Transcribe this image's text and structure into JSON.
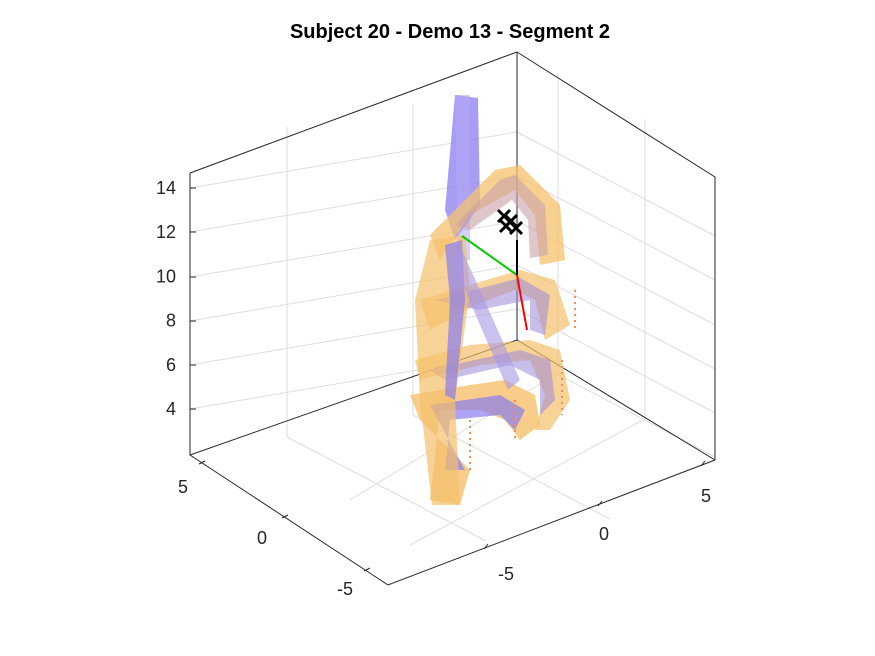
{
  "chart_data": {
    "type": "3d-surface",
    "title": "Subject 20 - Demo 13 - Segment 2",
    "xlabel": "",
    "ylabel": "",
    "zlabel": "",
    "x_ticks": [
      "-5",
      "0",
      "5"
    ],
    "y_ticks": [
      "-5",
      "0",
      "5"
    ],
    "z_ticks": [
      "4",
      "6",
      "8",
      "10",
      "12",
      "14"
    ],
    "grid": true,
    "view": "3d-isometric",
    "shapes": [
      {
        "name": "",
        "color": "#f5c16c",
        "description_hidden": true
      },
      {
        "name": "",
        "color": "#8a7ef0"
      }
    ],
    "axes_triad": {
      "colors": [
        "#ff0000",
        "#00cc00",
        "#000000"
      ]
    }
  }
}
